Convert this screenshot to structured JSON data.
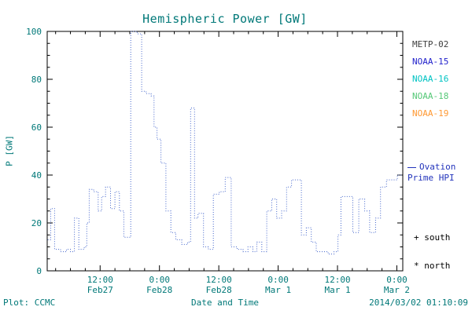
{
  "colors": {
    "axis_text": "#007878",
    "title": "#007878",
    "frame": "#000000",
    "series_line": "#4466cc",
    "ovation_text": "#2233bb",
    "marker_text": "#000000"
  },
  "ovation": {
    "line1": "Ovation",
    "line2": "Prime HPI"
  },
  "markers": {
    "south": "+ south",
    "north": "* north"
  },
  "footer": {
    "plot_credit": "Plot: CCMC",
    "timestamp": "2014/03/02 01:10:09"
  },
  "chart_data": {
    "type": "line",
    "title": "Hemispheric Power [GW]",
    "ylabel": "P [GW]",
    "xlabel": "Date and Time",
    "ylim": [
      0,
      100
    ],
    "yticks": [
      0,
      20,
      40,
      60,
      80,
      100
    ],
    "y_minor_step": 5,
    "xlim_hours": [
      1.3,
      73.2
    ],
    "x_minor_step_hours": 3,
    "xticks": [
      {
        "hour": 12,
        "time": "12:00",
        "date": "Feb27"
      },
      {
        "hour": 24,
        "time": "0:00",
        "date": "Feb28"
      },
      {
        "hour": 36,
        "time": "12:00",
        "date": "Feb28"
      },
      {
        "hour": 48,
        "time": "0:00",
        "date": "Mar 1"
      },
      {
        "hour": 60,
        "time": "12:00",
        "date": "Mar 1"
      },
      {
        "hour": 72,
        "time": "0:00",
        "date": "Mar 2"
      }
    ],
    "legend": [
      {
        "label": "METP-02",
        "color": "#404040"
      },
      {
        "label": "NOAA-15",
        "color": "#2222cc"
      },
      {
        "label": "NOAA-16",
        "color": "#00c3c3"
      },
      {
        "label": "NOAA-18",
        "color": "#55c877"
      },
      {
        "label": "NOAA-19",
        "color": "#ff9933"
      }
    ],
    "series": [
      {
        "name": "Ovation Prime HPI",
        "color": "#4466cc",
        "style": "dotted-step",
        "points": [
          [
            1.4,
            13
          ],
          [
            2.0,
            26
          ],
          [
            2.8,
            9
          ],
          [
            4.0,
            8
          ],
          [
            5.2,
            9
          ],
          [
            6.0,
            8
          ],
          [
            6.8,
            22
          ],
          [
            7.7,
            9
          ],
          [
            8.8,
            10
          ],
          [
            9.3,
            20
          ],
          [
            9.8,
            34
          ],
          [
            10.7,
            33
          ],
          [
            11.6,
            25
          ],
          [
            12.3,
            31
          ],
          [
            13.1,
            35
          ],
          [
            14.1,
            26
          ],
          [
            15.0,
            33
          ],
          [
            15.9,
            25
          ],
          [
            16.8,
            14
          ],
          [
            18.2,
            100
          ],
          [
            19.5,
            99
          ],
          [
            20.4,
            75
          ],
          [
            21.3,
            74
          ],
          [
            22.3,
            73
          ],
          [
            22.9,
            60
          ],
          [
            23.5,
            55
          ],
          [
            24.3,
            45
          ],
          [
            25.3,
            25
          ],
          [
            26.3,
            16
          ],
          [
            27.3,
            13
          ],
          [
            28.5,
            11
          ],
          [
            29.7,
            12
          ],
          [
            30.3,
            68
          ],
          [
            31.1,
            22
          ],
          [
            31.8,
            24
          ],
          [
            32.9,
            10
          ],
          [
            33.9,
            9
          ],
          [
            34.9,
            32
          ],
          [
            36.1,
            33
          ],
          [
            37.3,
            39
          ],
          [
            38.5,
            10
          ],
          [
            39.7,
            9
          ],
          [
            40.9,
            8
          ],
          [
            41.9,
            10
          ],
          [
            42.9,
            8
          ],
          [
            43.7,
            12
          ],
          [
            44.7,
            8
          ],
          [
            45.7,
            25
          ],
          [
            46.7,
            30
          ],
          [
            47.7,
            22
          ],
          [
            48.7,
            25
          ],
          [
            49.7,
            35
          ],
          [
            50.7,
            38
          ],
          [
            51.9,
            38
          ],
          [
            52.7,
            15
          ],
          [
            53.7,
            18
          ],
          [
            54.7,
            12
          ],
          [
            55.7,
            8
          ],
          [
            56.9,
            8
          ],
          [
            58.1,
            7
          ],
          [
            59.3,
            8
          ],
          [
            60.1,
            15
          ],
          [
            60.7,
            31
          ],
          [
            62.0,
            31
          ],
          [
            63.1,
            16
          ],
          [
            64.3,
            30
          ],
          [
            65.5,
            25
          ],
          [
            66.5,
            16
          ],
          [
            67.7,
            22
          ],
          [
            68.7,
            35
          ],
          [
            69.9,
            38
          ],
          [
            71.2,
            38
          ],
          [
            72.1,
            40
          ],
          [
            73.2,
            40
          ]
        ]
      }
    ]
  }
}
